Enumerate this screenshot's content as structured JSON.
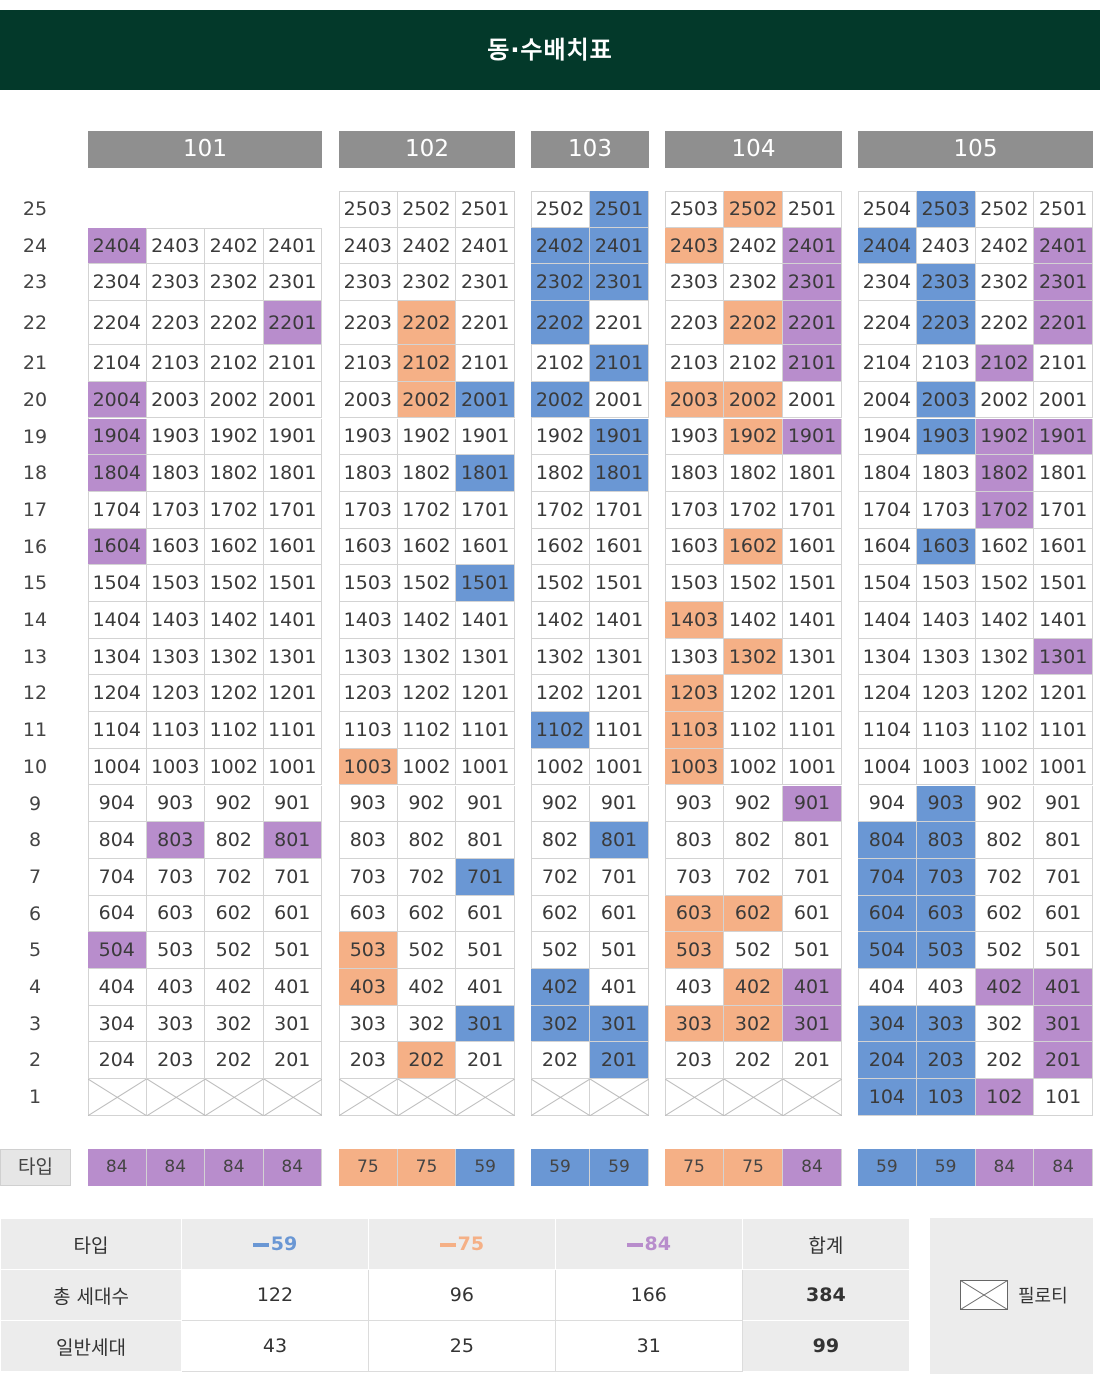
{
  "title": "동·수배치표",
  "floors": [
    "25",
    "24",
    "23",
    "22",
    "21",
    "20",
    "19",
    "18",
    "17",
    "16",
    "15",
    "14",
    "13",
    "12",
    "11",
    "10",
    "9",
    "8",
    "7",
    "6",
    "5",
    "4",
    "3",
    "2",
    "1"
  ],
  "buildings": [
    {
      "name": "101",
      "cols": 4,
      "rows": [
        [
          "",
          "",
          "",
          ""
        ],
        [
          "2404",
          "2403",
          "2402",
          "2401"
        ],
        [
          "2304",
          "2303",
          "2302",
          "2301"
        ],
        [
          "2204",
          "2203",
          "2202",
          "2201"
        ],
        [
          "2104",
          "2103",
          "2102",
          "2101"
        ],
        [
          "2004",
          "2003",
          "2002",
          "2001"
        ],
        [
          "1904",
          "1903",
          "1902",
          "1901"
        ],
        [
          "1804",
          "1803",
          "1802",
          "1801"
        ],
        [
          "1704",
          "1703",
          "1702",
          "1701"
        ],
        [
          "1604",
          "1603",
          "1602",
          "1601"
        ],
        [
          "1504",
          "1503",
          "1502",
          "1501"
        ],
        [
          "1404",
          "1403",
          "1402",
          "1401"
        ],
        [
          "1304",
          "1303",
          "1302",
          "1301"
        ],
        [
          "1204",
          "1203",
          "1202",
          "1201"
        ],
        [
          "1104",
          "1103",
          "1102",
          "1101"
        ],
        [
          "1004",
          "1003",
          "1002",
          "1001"
        ],
        [
          "904",
          "903",
          "902",
          "901"
        ],
        [
          "804",
          "803",
          "802",
          "801"
        ],
        [
          "704",
          "703",
          "702",
          "701"
        ],
        [
          "604",
          "603",
          "602",
          "601"
        ],
        [
          "504",
          "503",
          "502",
          "501"
        ],
        [
          "404",
          "403",
          "402",
          "401"
        ],
        [
          "304",
          "303",
          "302",
          "301"
        ],
        [
          "204",
          "203",
          "202",
          "201"
        ],
        [
          "X",
          "X",
          "X",
          "X"
        ]
      ],
      "colors": [
        [
          "-",
          "-",
          "-",
          "-"
        ],
        [
          "84",
          "",
          "",
          ""
        ],
        [
          "",
          "",
          "",
          ""
        ],
        [
          "",
          "",
          "",
          "84"
        ],
        [
          "",
          "",
          "",
          ""
        ],
        [
          "84",
          "",
          "",
          ""
        ],
        [
          "84",
          "",
          "",
          ""
        ],
        [
          "84",
          "",
          "",
          ""
        ],
        [
          "",
          "",
          "",
          ""
        ],
        [
          "84",
          "",
          "",
          ""
        ],
        [
          "",
          "",
          "",
          ""
        ],
        [
          "",
          "",
          "",
          ""
        ],
        [
          "",
          "",
          "",
          ""
        ],
        [
          "",
          "",
          "",
          ""
        ],
        [
          "",
          "",
          "",
          ""
        ],
        [
          "",
          "",
          "",
          ""
        ],
        [
          "",
          "",
          "",
          ""
        ],
        [
          "",
          "84",
          "",
          "84"
        ],
        [
          "",
          "",
          "",
          ""
        ],
        [
          "",
          "",
          "",
          ""
        ],
        [
          "84",
          "",
          "",
          ""
        ],
        [
          "",
          "",
          "",
          ""
        ],
        [
          "",
          "",
          "",
          ""
        ],
        [
          "",
          "",
          "",
          ""
        ],
        [
          "",
          "",
          "",
          ""
        ]
      ],
      "types": [
        "84",
        "84",
        "84",
        "84"
      ]
    },
    {
      "name": "102",
      "cols": 3,
      "rows": [
        [
          "2503",
          "2502",
          "2501"
        ],
        [
          "2403",
          "2402",
          "2401"
        ],
        [
          "2303",
          "2302",
          "2301"
        ],
        [
          "2203",
          "2202",
          "2201"
        ],
        [
          "2103",
          "2102",
          "2101"
        ],
        [
          "2003",
          "2002",
          "2001"
        ],
        [
          "1903",
          "1902",
          "1901"
        ],
        [
          "1803",
          "1802",
          "1801"
        ],
        [
          "1703",
          "1702",
          "1701"
        ],
        [
          "1603",
          "1602",
          "1601"
        ],
        [
          "1503",
          "1502",
          "1501"
        ],
        [
          "1403",
          "1402",
          "1401"
        ],
        [
          "1303",
          "1302",
          "1301"
        ],
        [
          "1203",
          "1202",
          "1201"
        ],
        [
          "1103",
          "1102",
          "1101"
        ],
        [
          "1003",
          "1002",
          "1001"
        ],
        [
          "903",
          "902",
          "901"
        ],
        [
          "803",
          "802",
          "801"
        ],
        [
          "703",
          "702",
          "701"
        ],
        [
          "603",
          "602",
          "601"
        ],
        [
          "503",
          "502",
          "501"
        ],
        [
          "403",
          "402",
          "401"
        ],
        [
          "303",
          "302",
          "301"
        ],
        [
          "203",
          "202",
          "201"
        ],
        [
          "X",
          "X",
          "X"
        ]
      ],
      "colors": [
        [
          "",
          "",
          ""
        ],
        [
          "",
          "",
          ""
        ],
        [
          "",
          "",
          ""
        ],
        [
          "",
          "75",
          ""
        ],
        [
          "",
          "75",
          ""
        ],
        [
          "",
          "75",
          "59"
        ],
        [
          "",
          "",
          ""
        ],
        [
          "",
          "",
          "59"
        ],
        [
          "",
          "",
          ""
        ],
        [
          "",
          "",
          ""
        ],
        [
          "",
          "",
          "59"
        ],
        [
          "",
          "",
          ""
        ],
        [
          "",
          "",
          ""
        ],
        [
          "",
          "",
          ""
        ],
        [
          "",
          "",
          ""
        ],
        [
          "75",
          "",
          ""
        ],
        [
          "",
          "",
          ""
        ],
        [
          "",
          "",
          ""
        ],
        [
          "",
          "",
          "59"
        ],
        [
          "",
          "",
          ""
        ],
        [
          "75",
          "",
          ""
        ],
        [
          "75",
          "",
          ""
        ],
        [
          "",
          "",
          "59"
        ],
        [
          "",
          "75",
          ""
        ],
        [
          "",
          "",
          ""
        ]
      ],
      "types": [
        "75",
        "75",
        "59"
      ]
    },
    {
      "name": "103",
      "cols": 2,
      "rows": [
        [
          "2502",
          "2501"
        ],
        [
          "2402",
          "2401"
        ],
        [
          "2302",
          "2301"
        ],
        [
          "2202",
          "2201"
        ],
        [
          "2102",
          "2101"
        ],
        [
          "2002",
          "2001"
        ],
        [
          "1902",
          "1901"
        ],
        [
          "1802",
          "1801"
        ],
        [
          "1702",
          "1701"
        ],
        [
          "1602",
          "1601"
        ],
        [
          "1502",
          "1501"
        ],
        [
          "1402",
          "1401"
        ],
        [
          "1302",
          "1301"
        ],
        [
          "1202",
          "1201"
        ],
        [
          "1102",
          "1101"
        ],
        [
          "1002",
          "1001"
        ],
        [
          "902",
          "901"
        ],
        [
          "802",
          "801"
        ],
        [
          "702",
          "701"
        ],
        [
          "602",
          "601"
        ],
        [
          "502",
          "501"
        ],
        [
          "402",
          "401"
        ],
        [
          "302",
          "301"
        ],
        [
          "202",
          "201"
        ],
        [
          "X",
          "X"
        ]
      ],
      "colors": [
        [
          "",
          "59"
        ],
        [
          "59",
          "59"
        ],
        [
          "59",
          "59"
        ],
        [
          "59",
          ""
        ],
        [
          "",
          "59"
        ],
        [
          "59",
          ""
        ],
        [
          "",
          "59"
        ],
        [
          "",
          "59"
        ],
        [
          "",
          ""
        ],
        [
          "",
          ""
        ],
        [
          "",
          ""
        ],
        [
          "",
          ""
        ],
        [
          "",
          ""
        ],
        [
          "",
          ""
        ],
        [
          "59",
          ""
        ],
        [
          "",
          ""
        ],
        [
          "",
          ""
        ],
        [
          "",
          "59"
        ],
        [
          "",
          ""
        ],
        [
          "",
          ""
        ],
        [
          "",
          ""
        ],
        [
          "59",
          ""
        ],
        [
          "59",
          "59"
        ],
        [
          "",
          "59"
        ],
        [
          "",
          ""
        ]
      ],
      "types": [
        "59",
        "59"
      ]
    },
    {
      "name": "104",
      "cols": 3,
      "rows": [
        [
          "2503",
          "2502",
          "2501"
        ],
        [
          "2403",
          "2402",
          "2401"
        ],
        [
          "2303",
          "2302",
          "2301"
        ],
        [
          "2203",
          "2202",
          "2201"
        ],
        [
          "2103",
          "2102",
          "2101"
        ],
        [
          "2003",
          "2002",
          "2001"
        ],
        [
          "1903",
          "1902",
          "1901"
        ],
        [
          "1803",
          "1802",
          "1801"
        ],
        [
          "1703",
          "1702",
          "1701"
        ],
        [
          "1603",
          "1602",
          "1601"
        ],
        [
          "1503",
          "1502",
          "1501"
        ],
        [
          "1403",
          "1402",
          "1401"
        ],
        [
          "1303",
          "1302",
          "1301"
        ],
        [
          "1203",
          "1202",
          "1201"
        ],
        [
          "1103",
          "1102",
          "1101"
        ],
        [
          "1003",
          "1002",
          "1001"
        ],
        [
          "903",
          "902",
          "901"
        ],
        [
          "803",
          "802",
          "801"
        ],
        [
          "703",
          "702",
          "701"
        ],
        [
          "603",
          "602",
          "601"
        ],
        [
          "503",
          "502",
          "501"
        ],
        [
          "403",
          "402",
          "401"
        ],
        [
          "303",
          "302",
          "301"
        ],
        [
          "203",
          "202",
          "201"
        ],
        [
          "X",
          "X",
          "X"
        ]
      ],
      "colors": [
        [
          "",
          "75",
          ""
        ],
        [
          "75",
          "",
          "84"
        ],
        [
          "",
          "",
          "84"
        ],
        [
          "",
          "75",
          "84"
        ],
        [
          "",
          "",
          "84"
        ],
        [
          "75",
          "75",
          ""
        ],
        [
          "",
          "75",
          "84"
        ],
        [
          "",
          "",
          ""
        ],
        [
          "",
          "",
          ""
        ],
        [
          "",
          "75",
          ""
        ],
        [
          "",
          "",
          ""
        ],
        [
          "75",
          "",
          ""
        ],
        [
          "",
          "75",
          ""
        ],
        [
          "75",
          "",
          ""
        ],
        [
          "75",
          "",
          ""
        ],
        [
          "75",
          "",
          ""
        ],
        [
          "",
          "",
          "84"
        ],
        [
          "",
          "",
          ""
        ],
        [
          "",
          "",
          ""
        ],
        [
          "75",
          "75",
          ""
        ],
        [
          "75",
          "",
          ""
        ],
        [
          "",
          "75",
          "84"
        ],
        [
          "75",
          "75",
          "84"
        ],
        [
          "",
          "",
          ""
        ],
        [
          "",
          "",
          ""
        ]
      ],
      "types": [
        "75",
        "75",
        "84"
      ]
    },
    {
      "name": "105",
      "cols": 4,
      "rows": [
        [
          "2504",
          "2503",
          "2502",
          "2501"
        ],
        [
          "2404",
          "2403",
          "2402",
          "2401"
        ],
        [
          "2304",
          "2303",
          "2302",
          "2301"
        ],
        [
          "2204",
          "2203",
          "2202",
          "2201"
        ],
        [
          "2104",
          "2103",
          "2102",
          "2101"
        ],
        [
          "2004",
          "2003",
          "2002",
          "2001"
        ],
        [
          "1904",
          "1903",
          "1902",
          "1901"
        ],
        [
          "1804",
          "1803",
          "1802",
          "1801"
        ],
        [
          "1704",
          "1703",
          "1702",
          "1701"
        ],
        [
          "1604",
          "1603",
          "1602",
          "1601"
        ],
        [
          "1504",
          "1503",
          "1502",
          "1501"
        ],
        [
          "1404",
          "1403",
          "1402",
          "1401"
        ],
        [
          "1304",
          "1303",
          "1302",
          "1301"
        ],
        [
          "1204",
          "1203",
          "1202",
          "1201"
        ],
        [
          "1104",
          "1103",
          "1102",
          "1101"
        ],
        [
          "1004",
          "1003",
          "1002",
          "1001"
        ],
        [
          "904",
          "903",
          "902",
          "901"
        ],
        [
          "804",
          "803",
          "802",
          "801"
        ],
        [
          "704",
          "703",
          "702",
          "701"
        ],
        [
          "604",
          "603",
          "602",
          "601"
        ],
        [
          "504",
          "503",
          "502",
          "501"
        ],
        [
          "404",
          "403",
          "402",
          "401"
        ],
        [
          "304",
          "303",
          "302",
          "301"
        ],
        [
          "204",
          "203",
          "202",
          "201"
        ],
        [
          "104",
          "103",
          "102",
          "101"
        ]
      ],
      "colors": [
        [
          "",
          "59",
          "",
          ""
        ],
        [
          "59",
          "",
          "",
          "84"
        ],
        [
          "",
          "59",
          "",
          "84"
        ],
        [
          "",
          "59",
          "",
          "84"
        ],
        [
          "",
          "",
          "84",
          ""
        ],
        [
          "",
          "59",
          "",
          ""
        ],
        [
          "",
          "59",
          "84",
          "84"
        ],
        [
          "",
          "",
          "84",
          ""
        ],
        [
          "",
          "",
          "84",
          ""
        ],
        [
          "",
          "59",
          "",
          ""
        ],
        [
          "",
          "",
          "",
          ""
        ],
        [
          "",
          "",
          "",
          ""
        ],
        [
          "",
          "",
          "",
          "84"
        ],
        [
          "",
          "",
          "",
          ""
        ],
        [
          "",
          "",
          "",
          ""
        ],
        [
          "",
          "",
          "",
          ""
        ],
        [
          "",
          "59",
          "",
          ""
        ],
        [
          "59",
          "59",
          "",
          ""
        ],
        [
          "59",
          "59",
          "",
          ""
        ],
        [
          "59",
          "59",
          "",
          ""
        ],
        [
          "59",
          "59",
          "",
          ""
        ],
        [
          "",
          "",
          "84",
          "84"
        ],
        [
          "59",
          "59",
          "",
          "84"
        ],
        [
          "59",
          "59",
          "",
          "84"
        ],
        [
          "59",
          "59",
          "84",
          ""
        ]
      ],
      "types": [
        "59",
        "59",
        "84",
        "84"
      ]
    }
  ],
  "type_label": "타입",
  "summary": {
    "header": [
      "타입",
      "59",
      "75",
      "84",
      "합계"
    ],
    "rows": [
      {
        "label": "총 세대수",
        "values": [
          "122",
          "96",
          "166",
          "384"
        ]
      },
      {
        "label": "일반세대",
        "values": [
          "43",
          "25",
          "31",
          "99"
        ]
      }
    ]
  },
  "legend": {
    "label": "필로티",
    "icon": "piloti-icon"
  },
  "colors": {
    "t59": "#6a97d4",
    "t75": "#f5b086",
    "t84": "#b88dcc",
    "header_bg": "#03392a",
    "building_header": "#8f8f8f"
  }
}
